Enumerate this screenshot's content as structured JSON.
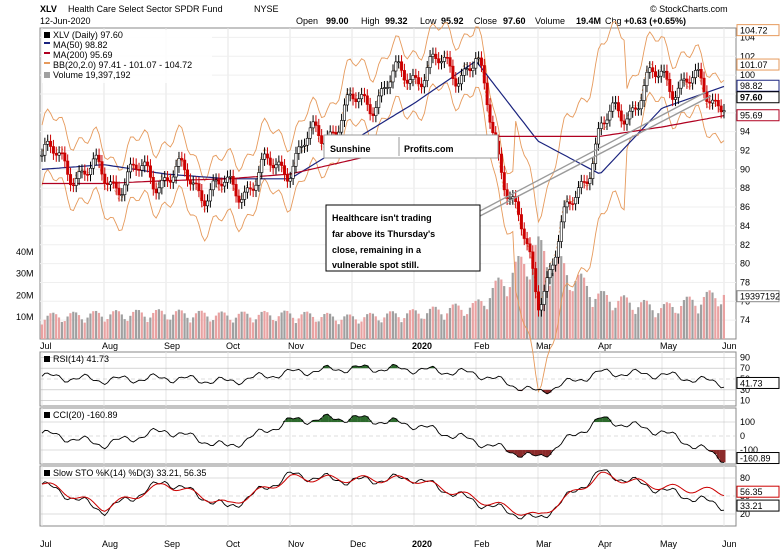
{
  "header": {
    "symbol": "XLV",
    "name": "Health Care Select Sector SPDR Fund",
    "exchange": "NYSE",
    "date": "12-Jun-2020",
    "open_label": "Open",
    "open": "99.00",
    "high_label": "High",
    "high": "99.32",
    "low_label": "Low",
    "low": "95.92",
    "close_label": "Close",
    "close": "97.60",
    "volume_label": "Volume",
    "volume": "19.4M",
    "chg_label": "Chg",
    "chg": "+0.63 (+0.65%)",
    "credit": "© StockCharts.com"
  },
  "legend": {
    "price": "XLV (Daily) 97.60",
    "ma50": "MA(50) 98.82",
    "ma200": "MA(200) 95.69",
    "bb": "BB(20,2.0) 97.41 - 101.07 - 104.72",
    "volume": "Volume 19,397,192"
  },
  "watermark": {
    "part1": "Sunshine",
    "part2": "Profits.com"
  },
  "annotation": {
    "lines": [
      "Healthcare isn't trading",
      "far above its Thursday's",
      "close, remaining in a",
      "vulnerable spot still."
    ]
  },
  "months": [
    "Jul",
    "Aug",
    "Sep",
    "Oct",
    "Nov",
    "Dec",
    "2020",
    "Feb",
    "Mar",
    "Apr",
    "May",
    "Jun"
  ],
  "colors": {
    "up": "#000000",
    "down": "#cc0000",
    "ma50": "#1a237e",
    "ma200": "#b00020",
    "bb": "#e69a5c",
    "volume_up": "#a0a0a0",
    "volume_down": "#e9a2a2",
    "trendline": "#9a9a9a",
    "overbought": "#2d6a2d",
    "oversold": "#8b2a2a",
    "sto_k": "#000000",
    "sto_d": "#cc0000"
  },
  "chart_data": [
    {
      "type": "line",
      "panel": "price",
      "title": "XLV Health Care Select Sector SPDR Fund NYSE",
      "ylim": [
        72,
        105
      ],
      "y_ticks": [
        74,
        76,
        78,
        80,
        82,
        84,
        86,
        88,
        90,
        92,
        94,
        96,
        98,
        100,
        102,
        104
      ],
      "price_tags": [
        "104.72",
        "101.07",
        "98.82",
        "97.60",
        "95.69"
      ],
      "series": [
        {
          "name": "XLV (Daily) 97.60",
          "x": [
            "Jul",
            "Aug",
            "Sep",
            "Oct",
            "Nov",
            "Dec",
            "2020",
            "Feb",
            "Mar",
            "Apr",
            "May",
            "Jun"
          ],
          "values": [
            91.5,
            89.0,
            89.5,
            87.5,
            91.0,
            96.5,
            100.5,
            101.0,
            76.5,
            94.0,
            100.0,
            97.6
          ]
        },
        {
          "name": "MA(50) 98.82",
          "values": [
            90.0,
            90.5,
            89.5,
            89.0,
            89.0,
            93.0,
            97.0,
            101.5,
            93.0,
            89.5,
            96.5,
            98.8
          ]
        },
        {
          "name": "MA(200) 95.69",
          "values": [
            88.5,
            88.5,
            88.8,
            89.0,
            89.5,
            91.0,
            92.5,
            93.5,
            93.5,
            93.5,
            94.5,
            95.7
          ]
        }
      ],
      "volume": {
        "label": "Volume 19,397,192",
        "ylim": [
          0,
          50000000
        ],
        "y_ticks": [
          "10M",
          "20M",
          "30M",
          "40M"
        ],
        "tag": "19397192",
        "values_millions": [
          9.5,
          10.5,
          11.0,
          10.0,
          10.5,
          9.0,
          11.0,
          14.0,
          38.0,
          18.0,
          13.0,
          19.4
        ]
      }
    },
    {
      "type": "line",
      "panel": "RSI",
      "label": "RSI(14) 41.73",
      "ylim": [
        0,
        100
      ],
      "y_ticks": [
        10,
        30,
        50,
        70,
        90
      ],
      "tag": "41.73",
      "series": [
        {
          "name": "RSI(14)",
          "values": [
            55,
            48,
            52,
            45,
            62,
            70,
            68,
            60,
            25,
            62,
            58,
            41.73
          ]
        }
      ]
    },
    {
      "type": "line",
      "panel": "CCI",
      "label": "CCI(20) -160.89",
      "ylim": [
        -200,
        200
      ],
      "y_ticks": [
        -100,
        0,
        100
      ],
      "tag": "-160.89",
      "series": [
        {
          "name": "CCI(20)",
          "values": [
            20,
            -60,
            40,
            -80,
            110,
            130,
            80,
            -40,
            -160,
            120,
            30,
            -160.89
          ]
        }
      ]
    },
    {
      "type": "line",
      "panel": "Slow STO",
      "label": "Slow STO %K(14) %D(3) 33.21, 56.35",
      "ylim": [
        0,
        100
      ],
      "y_ticks": [
        20,
        50,
        80
      ],
      "tags": [
        "56.35",
        "33.21"
      ],
      "series": [
        {
          "name": "%K(14) 33.21",
          "values": [
            70,
            25,
            75,
            30,
            85,
            75,
            80,
            40,
            10,
            90,
            60,
            33.21
          ]
        },
        {
          "name": "%D(3) 56.35",
          "values": [
            72,
            30,
            70,
            35,
            80,
            78,
            78,
            45,
            15,
            85,
            65,
            56.35
          ]
        }
      ]
    }
  ]
}
